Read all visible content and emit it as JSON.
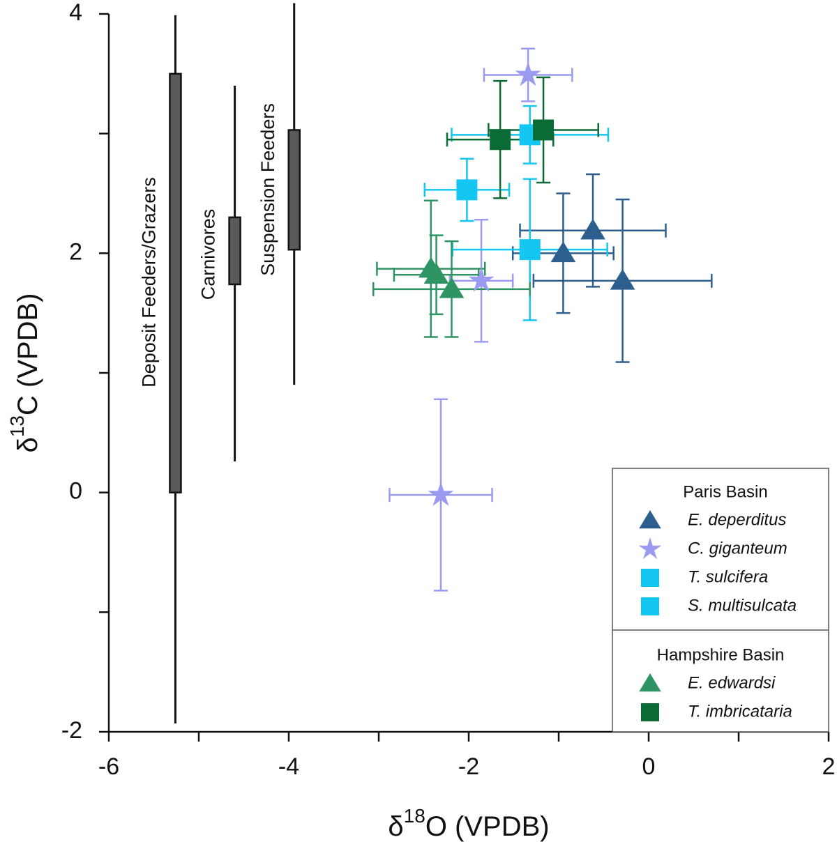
{
  "chart_data": {
    "type": "scatter",
    "x_label": "δ18O (VPDB)",
    "y_label": "δ13C (VPDB)",
    "xlim": [
      -6,
      2
    ],
    "ylim": [
      -2,
      4
    ],
    "xticks": [
      -6,
      -4,
      -2,
      0,
      2
    ],
    "yticks": [
      -2,
      0,
      2,
      4
    ],
    "xminor_ticks": [
      -5,
      -3,
      -1,
      1
    ],
    "yminor_ticks": [
      -1,
      1,
      3
    ],
    "ranges": [
      {
        "name": "Deposit Feeders/Grazers",
        "x": -5.26,
        "low": -1.93,
        "high": 3.99,
        "box_low": 0,
        "box_high": 3.5
      },
      {
        "name": "Carnivores",
        "x": -4.6,
        "low": 0.26,
        "high": 3.4,
        "box_low": 1.74,
        "box_high": 2.3
      },
      {
        "name": "Suspension Feeders",
        "x": -3.94,
        "low": 0.9,
        "high": 4.09,
        "box_low": 2.03,
        "box_high": 3.03
      }
    ],
    "range_color": "#5a5a5a",
    "legend_groups": [
      "Paris Basin",
      "Hampshire Basin"
    ],
    "series": [
      {
        "name": "E. deperditus",
        "group": 0,
        "marker": "triangle",
        "color": "#2d5f8e",
        "x": [
          -0.95,
          -0.62,
          -0.29
        ],
        "y": [
          2.0,
          2.19,
          1.77
        ],
        "xerr": [
          0.56,
          0.81,
          0.99
        ],
        "yerr": [
          0.5,
          0.47,
          0.68
        ]
      },
      {
        "name": "C. giganteum",
        "group": 0,
        "marker": "star",
        "color": "#9a9af0",
        "x": [
          -1.34,
          -1.86,
          -2.31
        ],
        "y": [
          3.49,
          1.77,
          -0.02
        ],
        "xerr": [
          0.49,
          0.35,
          0.57
        ],
        "yerr": [
          0.22,
          0.51,
          0.8
        ]
      },
      {
        "name": "T. sulcifera",
        "group": 0,
        "marker": "square",
        "color": "#14c6f2",
        "x": [
          -2.02,
          -1.32
        ],
        "y": [
          2.53,
          2.99
        ],
        "xerr": [
          0.47,
          0.87
        ],
        "yerr": [
          0.26,
          0.24
        ]
      },
      {
        "name": "S. multisulcata",
        "group": 0,
        "marker": "square",
        "color": "#14c6f2",
        "x": [
          -1.32
        ],
        "y": [
          2.03
        ],
        "xerr": [
          0.86
        ],
        "yerr": [
          0.59
        ]
      },
      {
        "name": "E. edwardsi",
        "group": 1,
        "marker": "triangle",
        "color": "#2e9463",
        "x": [
          -2.42,
          -2.36,
          -2.19
        ],
        "y": [
          1.87,
          1.82,
          1.7
        ],
        "xerr": [
          0.6,
          0.47,
          0.87
        ],
        "yerr": [
          0.57,
          0.33,
          0.4
        ]
      },
      {
        "name": "T. imbricataria",
        "group": 1,
        "marker": "square",
        "color": "#0b6b35",
        "x": [
          -1.65,
          -1.17
        ],
        "y": [
          2.95,
          3.03
        ],
        "xerr": [
          0.59,
          0.61
        ],
        "yerr": [
          0.49,
          0.44
        ]
      }
    ]
  }
}
